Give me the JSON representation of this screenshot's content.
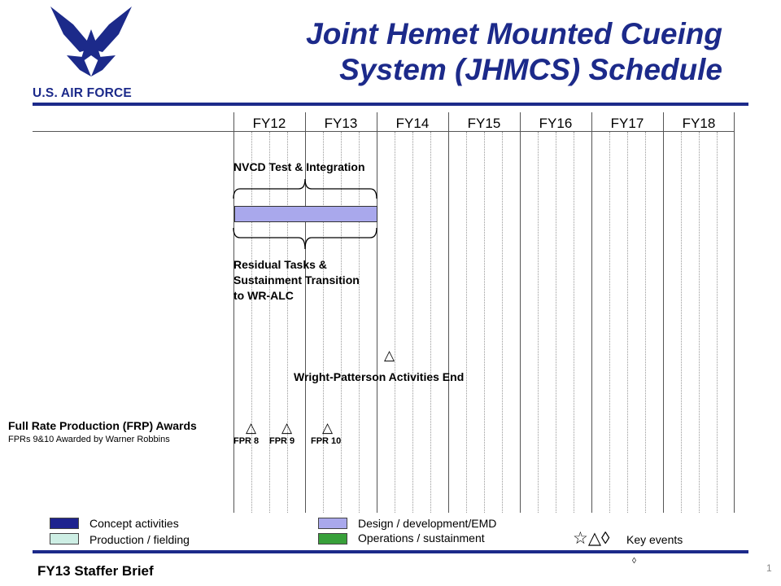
{
  "header": {
    "logo_text": "U.S. AIR FORCE",
    "title_line1": "Joint Hemet Mounted Cueing",
    "title_line2": "System (JHMCS) Schedule"
  },
  "timeline": {
    "fiscal_years": [
      "FY12",
      "FY13",
      "FY14",
      "FY15",
      "FY16",
      "FY17",
      "FY18"
    ]
  },
  "activities": {
    "nvcd_label": "NVCD Test & Integration",
    "residual_line1": "Residual Tasks &",
    "residual_line2": "Sustainment Transition",
    "residual_line3": "to WR-ALC",
    "wp_label": "Wright-Patterson Activities  End",
    "frp_title": "Full Rate Production (FRP) Awards",
    "frp_subtitle": "FPRs 9&10 Awarded by Warner Robbins",
    "fpr": [
      "FPR 8",
      "FPR 9",
      "FPR 10"
    ],
    "milestone_symbol": "△"
  },
  "legend": {
    "concept": "Concept activities",
    "production": "Production / fielding",
    "design": "Design / development/EMD",
    "operations": "Operations / sustainment",
    "key_symbols": "☆△◊",
    "key_events": "Key events",
    "small_diamond": "◊"
  },
  "colors": {
    "brand_blue": "#1c2a8a",
    "concept": "#1e238f",
    "production": "#cdeee4",
    "design": "#a9a8ec",
    "operations": "#38a03a"
  },
  "footer": {
    "brief": "FY13 Staffer Brief",
    "page_number": "1"
  }
}
